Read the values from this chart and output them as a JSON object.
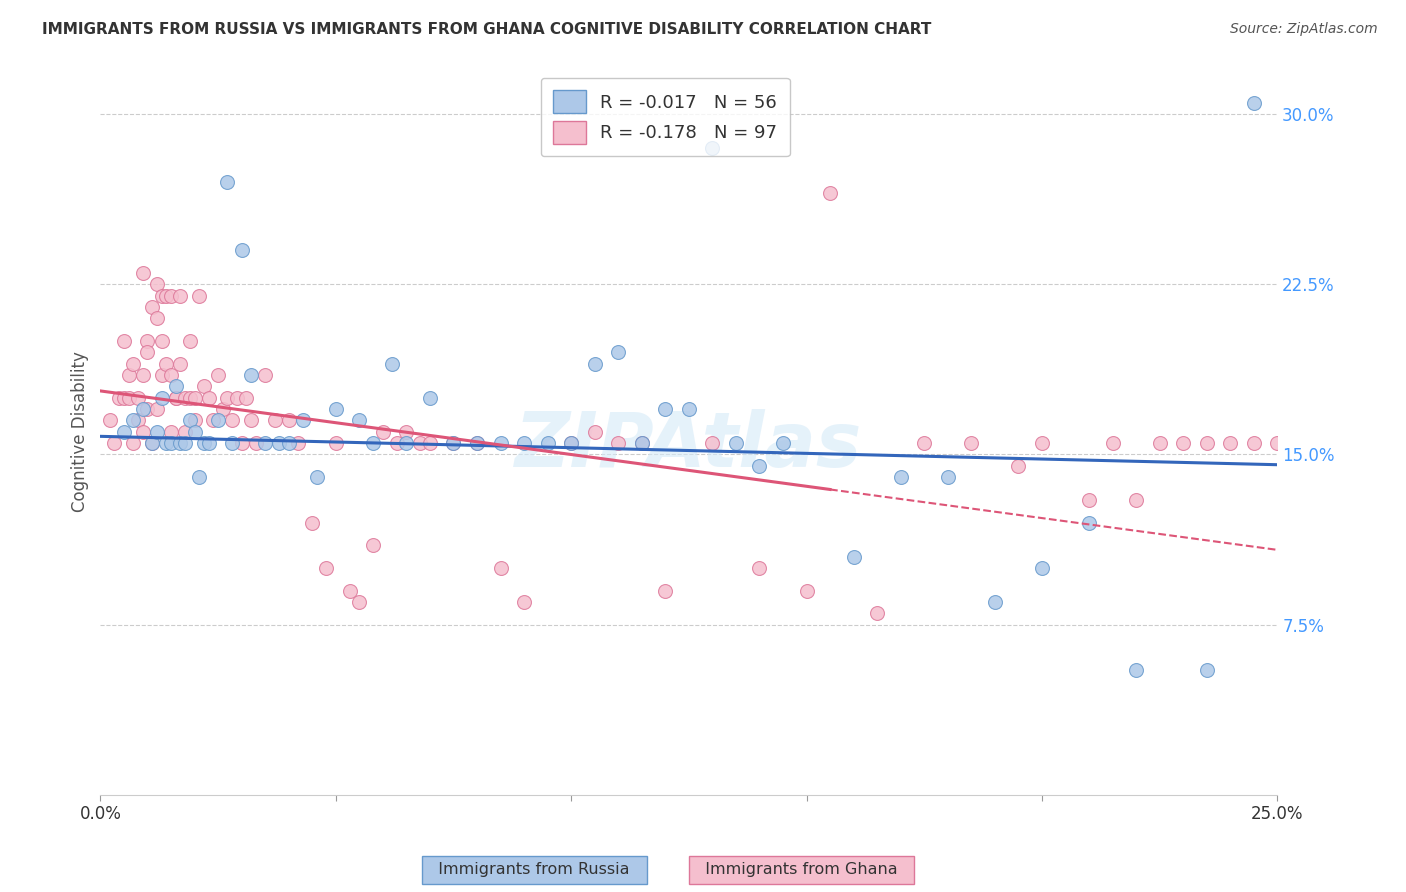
{
  "title": "IMMIGRANTS FROM RUSSIA VS IMMIGRANTS FROM GHANA COGNITIVE DISABILITY CORRELATION CHART",
  "source": "Source: ZipAtlas.com",
  "ylabel": "Cognitive Disability",
  "xlim": [
    0.0,
    0.25
  ],
  "ylim": [
    0.0,
    0.32
  ],
  "watermark": "ZIPAtlas",
  "russia_color": "#adc8e8",
  "russia_edge": "#6699cc",
  "ghana_color": "#f5bfce",
  "ghana_edge": "#dd7799",
  "russia_R": "-0.017",
  "russia_N": "56",
  "ghana_R": "-0.178",
  "ghana_N": "97",
  "russia_trend_color": "#3366bb",
  "ghana_trend_color": "#dd5577",
  "ytick_color": "#4499ff",
  "grid_color": "#cccccc",
  "russia_x": [
    0.005,
    0.007,
    0.009,
    0.011,
    0.012,
    0.013,
    0.014,
    0.015,
    0.016,
    0.017,
    0.018,
    0.019,
    0.02,
    0.021,
    0.022,
    0.023,
    0.025,
    0.027,
    0.028,
    0.03,
    0.032,
    0.035,
    0.038,
    0.04,
    0.043,
    0.046,
    0.05,
    0.055,
    0.058,
    0.062,
    0.065,
    0.07,
    0.075,
    0.08,
    0.085,
    0.09,
    0.095,
    0.1,
    0.105,
    0.11,
    0.115,
    0.12,
    0.125,
    0.13,
    0.135,
    0.14,
    0.145,
    0.16,
    0.17,
    0.18,
    0.19,
    0.2,
    0.21,
    0.22,
    0.235,
    0.245
  ],
  "russia_y": [
    0.16,
    0.165,
    0.17,
    0.155,
    0.16,
    0.175,
    0.155,
    0.155,
    0.18,
    0.155,
    0.155,
    0.165,
    0.16,
    0.14,
    0.155,
    0.155,
    0.165,
    0.27,
    0.155,
    0.24,
    0.185,
    0.155,
    0.155,
    0.155,
    0.165,
    0.14,
    0.17,
    0.165,
    0.155,
    0.19,
    0.155,
    0.175,
    0.155,
    0.155,
    0.155,
    0.155,
    0.155,
    0.155,
    0.19,
    0.195,
    0.155,
    0.17,
    0.17,
    0.285,
    0.155,
    0.145,
    0.155,
    0.105,
    0.14,
    0.14,
    0.085,
    0.1,
    0.12,
    0.055,
    0.055,
    0.305
  ],
  "ghana_x": [
    0.002,
    0.003,
    0.004,
    0.005,
    0.005,
    0.006,
    0.006,
    0.007,
    0.007,
    0.008,
    0.008,
    0.009,
    0.009,
    0.009,
    0.01,
    0.01,
    0.01,
    0.011,
    0.011,
    0.012,
    0.012,
    0.012,
    0.013,
    0.013,
    0.013,
    0.014,
    0.014,
    0.015,
    0.015,
    0.015,
    0.016,
    0.016,
    0.017,
    0.017,
    0.018,
    0.018,
    0.019,
    0.019,
    0.02,
    0.02,
    0.021,
    0.022,
    0.023,
    0.024,
    0.025,
    0.026,
    0.027,
    0.028,
    0.029,
    0.03,
    0.031,
    0.032,
    0.033,
    0.035,
    0.037,
    0.04,
    0.042,
    0.045,
    0.048,
    0.05,
    0.053,
    0.055,
    0.058,
    0.06,
    0.063,
    0.065,
    0.068,
    0.07,
    0.075,
    0.08,
    0.085,
    0.09,
    0.1,
    0.105,
    0.11,
    0.115,
    0.12,
    0.13,
    0.14,
    0.15,
    0.155,
    0.165,
    0.175,
    0.185,
    0.195,
    0.2,
    0.21,
    0.215,
    0.22,
    0.225,
    0.23,
    0.235,
    0.24,
    0.245,
    0.25,
    0.255,
    0.26
  ],
  "ghana_y": [
    0.165,
    0.155,
    0.175,
    0.2,
    0.175,
    0.175,
    0.185,
    0.155,
    0.19,
    0.165,
    0.175,
    0.185,
    0.16,
    0.23,
    0.2,
    0.17,
    0.195,
    0.155,
    0.215,
    0.17,
    0.21,
    0.225,
    0.22,
    0.2,
    0.185,
    0.22,
    0.19,
    0.185,
    0.16,
    0.22,
    0.175,
    0.175,
    0.22,
    0.19,
    0.175,
    0.16,
    0.2,
    0.175,
    0.175,
    0.165,
    0.22,
    0.18,
    0.175,
    0.165,
    0.185,
    0.17,
    0.175,
    0.165,
    0.175,
    0.155,
    0.175,
    0.165,
    0.155,
    0.185,
    0.165,
    0.165,
    0.155,
    0.12,
    0.1,
    0.155,
    0.09,
    0.085,
    0.11,
    0.16,
    0.155,
    0.16,
    0.155,
    0.155,
    0.155,
    0.155,
    0.1,
    0.085,
    0.155,
    0.16,
    0.155,
    0.155,
    0.09,
    0.155,
    0.1,
    0.09,
    0.265,
    0.08,
    0.155,
    0.155,
    0.145,
    0.155,
    0.13,
    0.155,
    0.13,
    0.155,
    0.155,
    0.155,
    0.155,
    0.155,
    0.155,
    0.155,
    0.155
  ]
}
